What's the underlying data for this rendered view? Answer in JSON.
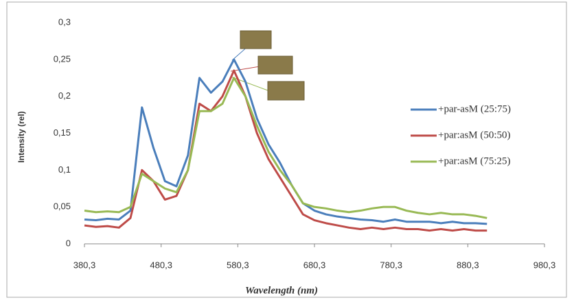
{
  "chart_data": {
    "type": "line",
    "x_label": "Wavelength (nm)",
    "y_label": "Intensity (rel)",
    "x": [
      380.3,
      395.3,
      410.3,
      425.3,
      440.3,
      455.3,
      470.3,
      485.3,
      500.3,
      515.3,
      530.3,
      545.3,
      560.3,
      575.3,
      590.3,
      605.3,
      620.3,
      635.3,
      650.3,
      665.3,
      680.3,
      695.3,
      710.3,
      725.3,
      740.3,
      755.3,
      770.3,
      785.3,
      800.3,
      815.3,
      830.3,
      845.3,
      860.3,
      875.3,
      890.3,
      905.3
    ],
    "series": [
      {
        "name": "+par-asM (25:75)",
        "color": "#4a7ebb",
        "values": [
          0.033,
          0.032,
          0.034,
          0.033,
          0.045,
          0.185,
          0.13,
          0.085,
          0.078,
          0.12,
          0.225,
          0.205,
          0.22,
          0.25,
          0.22,
          0.17,
          0.135,
          0.11,
          0.08,
          0.055,
          0.045,
          0.04,
          0.037,
          0.035,
          0.033,
          0.032,
          0.03,
          0.033,
          0.03,
          0.03,
          0.03,
          0.028,
          0.03,
          0.028,
          0.028,
          0.027
        ]
      },
      {
        "name": "+par:asM (50:50)",
        "color": "#be4b48",
        "values": [
          0.025,
          0.023,
          0.024,
          0.022,
          0.035,
          0.1,
          0.085,
          0.06,
          0.065,
          0.1,
          0.19,
          0.18,
          0.2,
          0.235,
          0.2,
          0.15,
          0.115,
          0.09,
          0.065,
          0.04,
          0.032,
          0.028,
          0.025,
          0.022,
          0.02,
          0.022,
          0.02,
          0.022,
          0.02,
          0.02,
          0.018,
          0.02,
          0.018,
          0.02,
          0.018,
          0.018
        ]
      },
      {
        "name": "+par:asM (75:25)",
        "color": "#98b954",
        "values": [
          0.045,
          0.043,
          0.044,
          0.043,
          0.05,
          0.095,
          0.085,
          0.075,
          0.07,
          0.1,
          0.18,
          0.18,
          0.19,
          0.225,
          0.2,
          0.16,
          0.125,
          0.1,
          0.08,
          0.055,
          0.05,
          0.048,
          0.045,
          0.043,
          0.045,
          0.048,
          0.05,
          0.05,
          0.045,
          0.042,
          0.04,
          0.042,
          0.04,
          0.04,
          0.038,
          0.035
        ]
      }
    ],
    "xlim": [
      380.3,
      980.3
    ],
    "xticks": [
      {
        "value": 380.3,
        "label": "380,3"
      },
      {
        "value": 480.3,
        "label": "480,3"
      },
      {
        "value": 580.3,
        "label": "580,3"
      },
      {
        "value": 680.3,
        "label": "680,3"
      },
      {
        "value": 780.3,
        "label": "780,3"
      },
      {
        "value": 880.3,
        "label": "880,3"
      },
      {
        "value": 980.3,
        "label": "980,3"
      }
    ],
    "ylim": [
      0,
      0.3
    ],
    "yticks": [
      0,
      {
        "value": 0.05,
        "label": "0,05"
      },
      {
        "value": 0.1,
        "label": "0,1"
      },
      {
        "value": 0.15,
        "label": "0,15"
      },
      {
        "value": 0.2,
        "label": "0,2"
      },
      {
        "value": 0.25,
        "label": "0,25"
      },
      {
        "value": 0.3,
        "label": "0,3"
      }
    ],
    "grid": false,
    "legend": "right"
  }
}
